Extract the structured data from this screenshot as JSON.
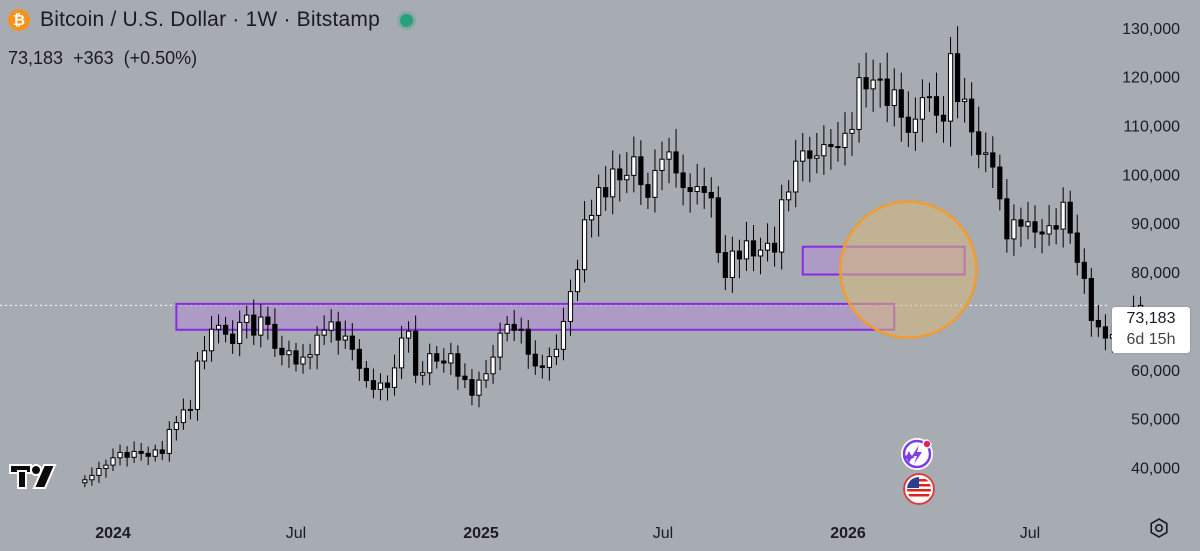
{
  "header": {
    "coin_symbol": "₿",
    "title": "Bitcoin / U.S. Dollar · 1W · Bitstamp",
    "last_price": "73,183",
    "change": "+363",
    "change_pct": "(+0.50%)"
  },
  "price_tag": {
    "price": "73,183",
    "countdown": "6d 15h"
  },
  "icons": [
    "bitcoin-icon",
    "live-status-dot",
    "tradingview-logo-icon",
    "spark-badge-icon",
    "us-flag-icon",
    "settings-gear-icon"
  ],
  "colors": {
    "background": "#a7acb3",
    "zone_stroke": "#8a2be2",
    "zone_fill": "#b08fd1",
    "circle_stroke": "#f39c2c",
    "circle_fill": "#d9b87a",
    "up_candle": "#ffffff",
    "down_candle": "#000000"
  },
  "chart_data": {
    "type": "candlestick",
    "title": "Bitcoin / U.S. Dollar · 1W · Bitstamp",
    "interval": "1W",
    "y_axis_side": "right",
    "ylim": [
      35000,
      132000
    ],
    "y_ticks": [
      "130,000",
      "120,000",
      "110,000",
      "100,000",
      "90,000",
      "80,000",
      "70,000",
      "60,000",
      "50,000",
      "40,000"
    ],
    "y_tick_values": [
      130000,
      120000,
      110000,
      100000,
      90000,
      80000,
      70000,
      60000,
      50000,
      40000
    ],
    "x_ticks": [
      "2024",
      "Jul",
      "2025",
      "Jul",
      "2026",
      "Jul"
    ],
    "x_tick_bold": [
      true,
      false,
      true,
      false,
      true,
      false
    ],
    "x_tick_dates": [
      "2024-01-01",
      "2024-07-01",
      "2025-01-01",
      "2025-07-01",
      "2026-01-01",
      "2026-07-01"
    ],
    "last_price": 73183,
    "zones": [
      {
        "from": "2024-03-04",
        "to": "2026-02-16",
        "low": 68200,
        "high": 73500
      },
      {
        "from": "2025-11-17",
        "to": "2026-04-27",
        "low": 79500,
        "high": 85200
      }
    ],
    "highlight_circle": {
      "date": "2026-03-02",
      "price": 80500
    },
    "weekly_closes": [
      37500,
      38400,
      39800,
      40500,
      42000,
      43100,
      42100,
      43300,
      42900,
      42300,
      43600,
      42900,
      47800,
      49200,
      51800,
      51900,
      61800,
      63900,
      68300,
      69100,
      67300,
      65400,
      69700,
      71200,
      67100,
      70800,
      69300,
      64400,
      63100,
      63900,
      61200,
      62600,
      63100,
      67100,
      68100,
      69800,
      66100,
      66900,
      64200,
      60300,
      57800,
      56000,
      57300,
      56400,
      60400,
      66500,
      67900,
      58900,
      59400,
      63300,
      61800,
      61400,
      63300,
      58700,
      58000,
      54800,
      57900,
      59200,
      62600,
      67500,
      69300,
      68100,
      68300,
      63200,
      60800,
      60500,
      62700,
      64200,
      69900,
      76000,
      80500,
      90700,
      91600,
      97300,
      95400,
      101100,
      98900,
      99800,
      103600,
      97900,
      95300,
      100800,
      103100,
      104600,
      100300,
      97300,
      96500,
      97500,
      96300,
      95200,
      84000,
      78900,
      84300,
      82700,
      86400,
      83300,
      84500,
      85900,
      84100,
      94800,
      96400,
      102700,
      104800,
      103300,
      103800,
      106100,
      105700,
      105500,
      108400,
      109200,
      119800,
      117500,
      119300,
      119500,
      114100,
      117300,
      111700,
      108600,
      111300,
      115700,
      115900,
      112100,
      110900,
      124700,
      114900,
      115400,
      108700,
      104100,
      104400,
      101500,
      95000,
      86800,
      90700,
      89400,
      90300,
      88200,
      87800,
      89500,
      88800,
      94300,
      88000,
      82000,
      78700,
      70100,
      68800,
      66500,
      67200,
      65900,
      67600,
      72820,
      73183
    ],
    "x_range_dates": [
      "2023-12-04",
      "2026-08-10"
    ]
  }
}
